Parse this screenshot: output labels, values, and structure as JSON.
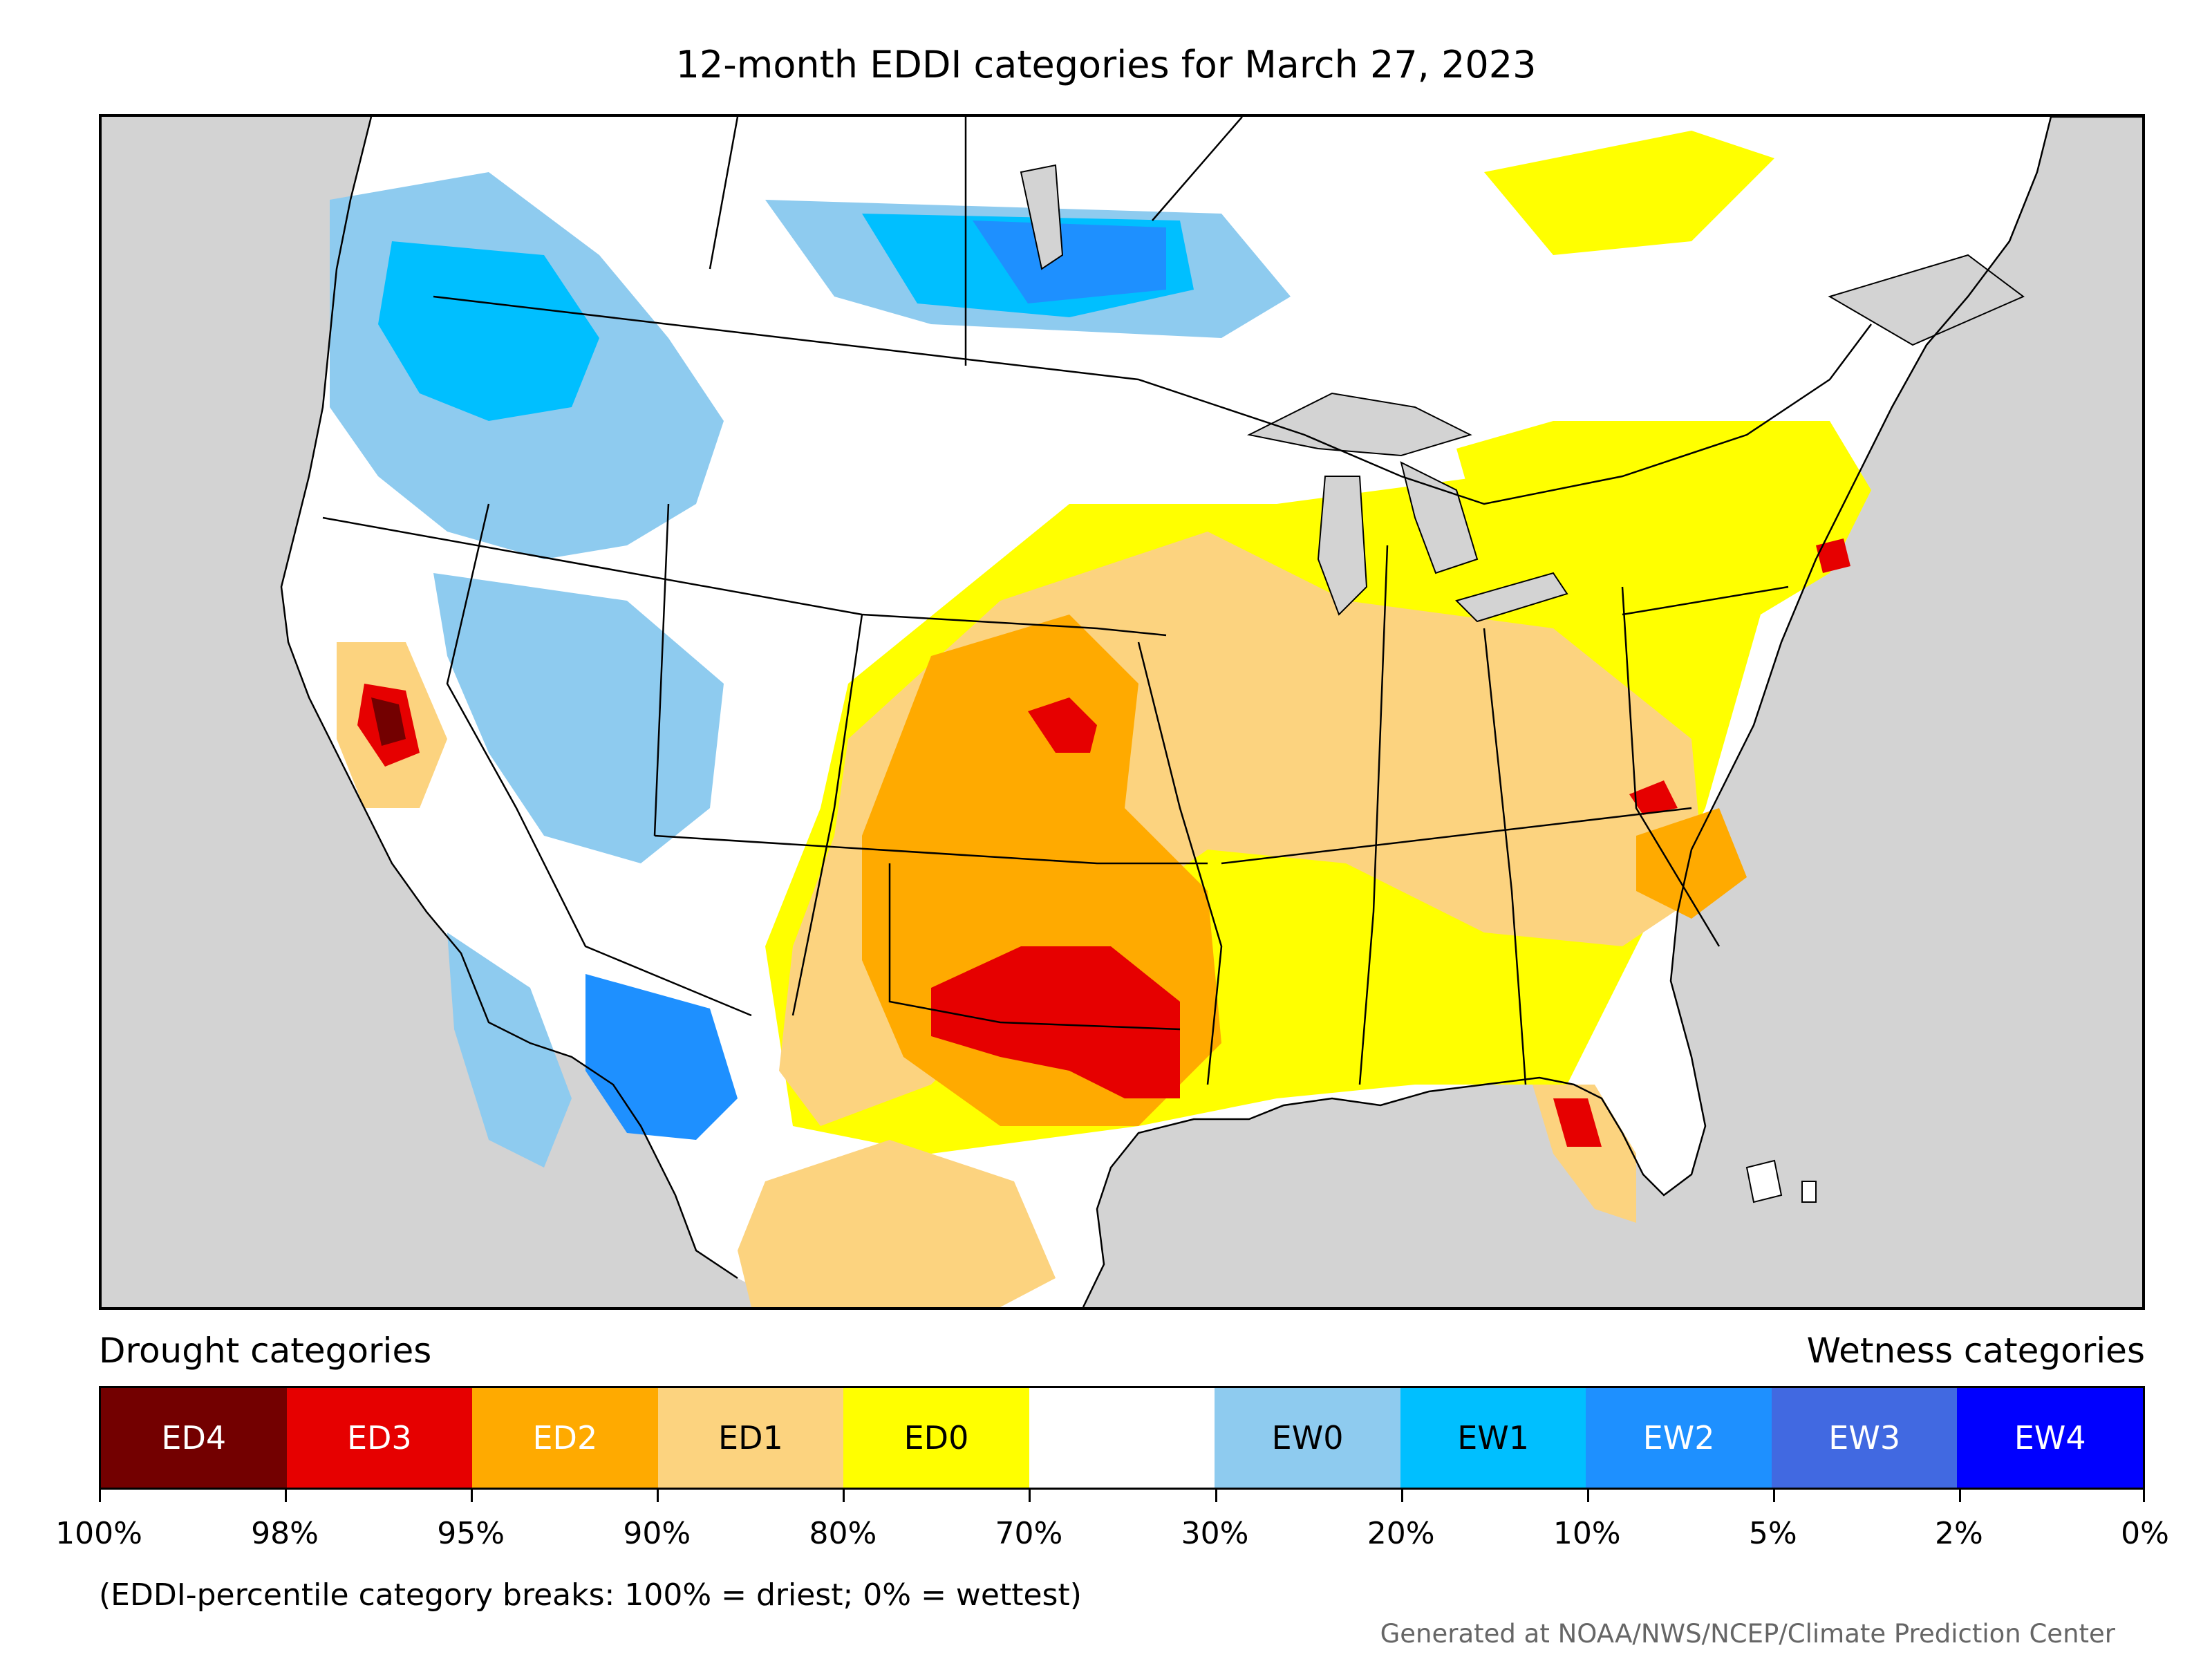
{
  "title": "12-month EDDI categories for March 27, 2023",
  "legend": {
    "drought_heading": "Drought categories",
    "wetness_heading": "Wetness categories",
    "categories": [
      {
        "label": "ED4",
        "color": "#730000",
        "text_color": "#ffffff"
      },
      {
        "label": "ED3",
        "color": "#e60000",
        "text_color": "#ffffff"
      },
      {
        "label": "ED2",
        "color": "#ffaa00",
        "text_color": "#ffffff"
      },
      {
        "label": "ED1",
        "color": "#fcd37f",
        "text_color": "#000000"
      },
      {
        "label": "ED0",
        "color": "#ffff00",
        "text_color": "#000000"
      },
      {
        "label": "",
        "color": "#ffffff",
        "text_color": "#000000"
      },
      {
        "label": "EW0",
        "color": "#8ecbef",
        "text_color": "#000000"
      },
      {
        "label": "EW1",
        "color": "#00bfff",
        "text_color": "#000000"
      },
      {
        "label": "EW2",
        "color": "#1e90ff",
        "text_color": "#ffffff"
      },
      {
        "label": "EW3",
        "color": "#4169e1",
        "text_color": "#ffffff"
      },
      {
        "label": "EW4",
        "color": "#0000ff",
        "text_color": "#ffffff"
      }
    ],
    "tick_labels": [
      "100%",
      "98%",
      "95%",
      "90%",
      "80%",
      "70%",
      "30%",
      "20%",
      "10%",
      "5%",
      "2%",
      "0%"
    ]
  },
  "note": "(EDDI-percentile category breaks: 100% = driest; 0% = wettest)",
  "credit": "Generated at NOAA/NWS/NCEP/Climate Prediction Center",
  "map": {
    "ocean_color": "#d3d3d3",
    "land_color": "#ffffff",
    "regions": [
      {
        "name": "Southern Plains / Texas",
        "category": "ED2"
      },
      {
        "name": "Central Texas core",
        "category": "ED3"
      },
      {
        "name": "Central California",
        "category": "ED4"
      },
      {
        "name": "Midwest / Ohio Valley",
        "category": "ED1"
      },
      {
        "name": "Southeast / Great Lakes",
        "category": "ED0"
      },
      {
        "name": "Central Florida",
        "category": "ED3"
      },
      {
        "name": "Virginia",
        "category": "ED3"
      },
      {
        "name": "Northern Plains border",
        "category": "EW2"
      },
      {
        "name": "Pacific Northwest / Idaho",
        "category": "EW1"
      },
      {
        "name": "Southeast Arizona",
        "category": "EW2"
      }
    ]
  }
}
